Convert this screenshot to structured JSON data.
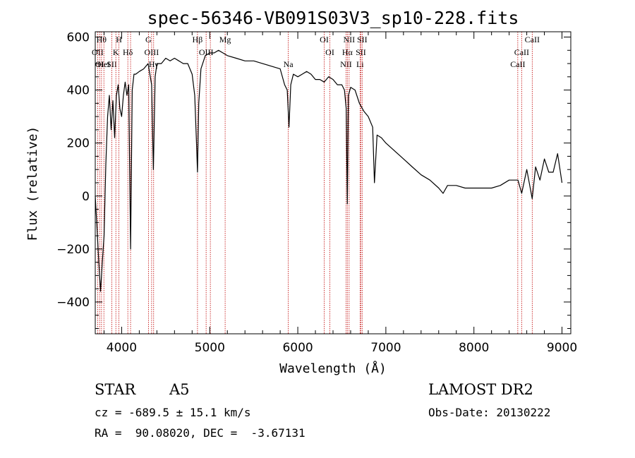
{
  "chart_data": {
    "type": "line",
    "title": "spec-56346-VB091S03V3_sp10-228.fits",
    "xlabel": "Wavelength (Å)",
    "ylabel": "Flux (relative)",
    "xlim": [
      3700,
      9100
    ],
    "ylim": [
      -520,
      620
    ],
    "x_ticks": [
      4000,
      5000,
      6000,
      7000,
      8000,
      9000
    ],
    "y_ticks": [
      -400,
      -200,
      0,
      200,
      400,
      600
    ],
    "grid": false,
    "series": [
      {
        "x": [
          3700,
          3720,
          3740,
          3760,
          3780,
          3800,
          3820,
          3840,
          3860,
          3880,
          3900,
          3920,
          3940,
          3960,
          3980,
          4000,
          4020,
          4040,
          4060,
          4080,
          4101,
          4120,
          4140,
          4160,
          4200,
          4250,
          4300,
          4340,
          4360,
          4380,
          4400,
          4450,
          4500,
          4550,
          4600,
          4650,
          4700,
          4750,
          4800,
          4830,
          4850,
          4861,
          4875,
          4900,
          4950,
          5000,
          5050,
          5100,
          5150,
          5200,
          5300,
          5400,
          5500,
          5600,
          5700,
          5800,
          5850,
          5880,
          5900,
          5920,
          5950,
          6000,
          6050,
          6100,
          6150,
          6200,
          6250,
          6300,
          6350,
          6400,
          6450,
          6500,
          6530,
          6550,
          6563,
          6575,
          6600,
          6650,
          6700,
          6750,
          6800,
          6850,
          6870,
          6900,
          6950,
          7000,
          7100,
          7200,
          7300,
          7400,
          7500,
          7600,
          7650,
          7700,
          7800,
          7900,
          8000,
          8100,
          8200,
          8300,
          8400,
          8500,
          8542,
          8600,
          8662,
          8700,
          8750,
          8800,
          8850,
          8900,
          8950,
          9000
        ],
        "y": [
          0,
          -120,
          -250,
          -360,
          -250,
          -150,
          120,
          300,
          380,
          250,
          360,
          220,
          380,
          420,
          330,
          300,
          380,
          430,
          380,
          420,
          -200,
          400,
          460,
          460,
          470,
          480,
          500,
          420,
          100,
          450,
          500,
          500,
          520,
          510,
          520,
          510,
          500,
          500,
          460,
          380,
          200,
          90,
          350,
          480,
          530,
          540,
          540,
          550,
          540,
          530,
          520,
          510,
          510,
          500,
          490,
          480,
          420,
          400,
          260,
          420,
          460,
          450,
          460,
          470,
          460,
          440,
          440,
          430,
          450,
          440,
          420,
          420,
          400,
          330,
          -30,
          380,
          410,
          400,
          350,
          320,
          300,
          260,
          50,
          230,
          220,
          200,
          170,
          140,
          110,
          80,
          60,
          30,
          10,
          40,
          40,
          30,
          30,
          30,
          30,
          40,
          60,
          60,
          10,
          100,
          -10,
          110,
          60,
          140,
          90,
          90,
          160,
          50
        ]
      }
    ],
    "line_marks": [
      {
        "x": 3727,
        "label": "OII",
        "row": 1
      },
      {
        "x": 3750,
        "label": "OI",
        "row": 2
      },
      {
        "x": 3771,
        "label": "Hθ",
        "row": 0
      },
      {
        "x": 3798,
        "label": "HeI",
        "row": 2
      },
      {
        "x": 3889,
        "label": "SII",
        "row": 2
      },
      {
        "x": 3934,
        "label": "K",
        "row": 1
      },
      {
        "x": 3969,
        "label": "H",
        "row": 0
      },
      {
        "x": 4070,
        "label": "Hδ",
        "row": 1
      },
      {
        "x": 4101,
        "label": "",
        "row": 1
      },
      {
        "x": 4304,
        "label": "G",
        "row": 0
      },
      {
        "x": 4340,
        "label": "OIII",
        "row": 1
      },
      {
        "x": 4363,
        "label": "Hγ",
        "row": 2
      },
      {
        "x": 4861,
        "label": "Hβ",
        "row": 0
      },
      {
        "x": 4959,
        "label": "OIII",
        "row": 1
      },
      {
        "x": 5007,
        "label": "",
        "row": 2
      },
      {
        "x": 5175,
        "label": "Mg",
        "row": 0
      },
      {
        "x": 5892,
        "label": "Na",
        "row": 2
      },
      {
        "x": 6300,
        "label": "OI",
        "row": 0
      },
      {
        "x": 6364,
        "label": "OI",
        "row": 1
      },
      {
        "x": 6548,
        "label": "NII",
        "row": 2
      },
      {
        "x": 6563,
        "label": "Hα",
        "row": 1
      },
      {
        "x": 6583,
        "label": "NII",
        "row": 0
      },
      {
        "x": 6707,
        "label": "Li",
        "row": 2
      },
      {
        "x": 6716,
        "label": "SII",
        "row": 1
      },
      {
        "x": 6731,
        "label": "SII",
        "row": 0
      },
      {
        "x": 8498,
        "label": "CaII",
        "row": 2
      },
      {
        "x": 8542,
        "label": "CaII",
        "row": 1
      },
      {
        "x": 8662,
        "label": "CaII",
        "row": 0
      }
    ]
  },
  "info": {
    "class_label": "STAR",
    "subclass": "A5",
    "cz": "cz = -689.5 ± 15.1 km/s",
    "radec": "RA =  90.08020, DEC =  -3.67131",
    "survey": "LAMOST DR2",
    "obs_date": "Obs-Date: 20130222"
  },
  "colors": {
    "spectrum": "#000000",
    "line_marks": "#c00000",
    "axes": "#000000"
  }
}
